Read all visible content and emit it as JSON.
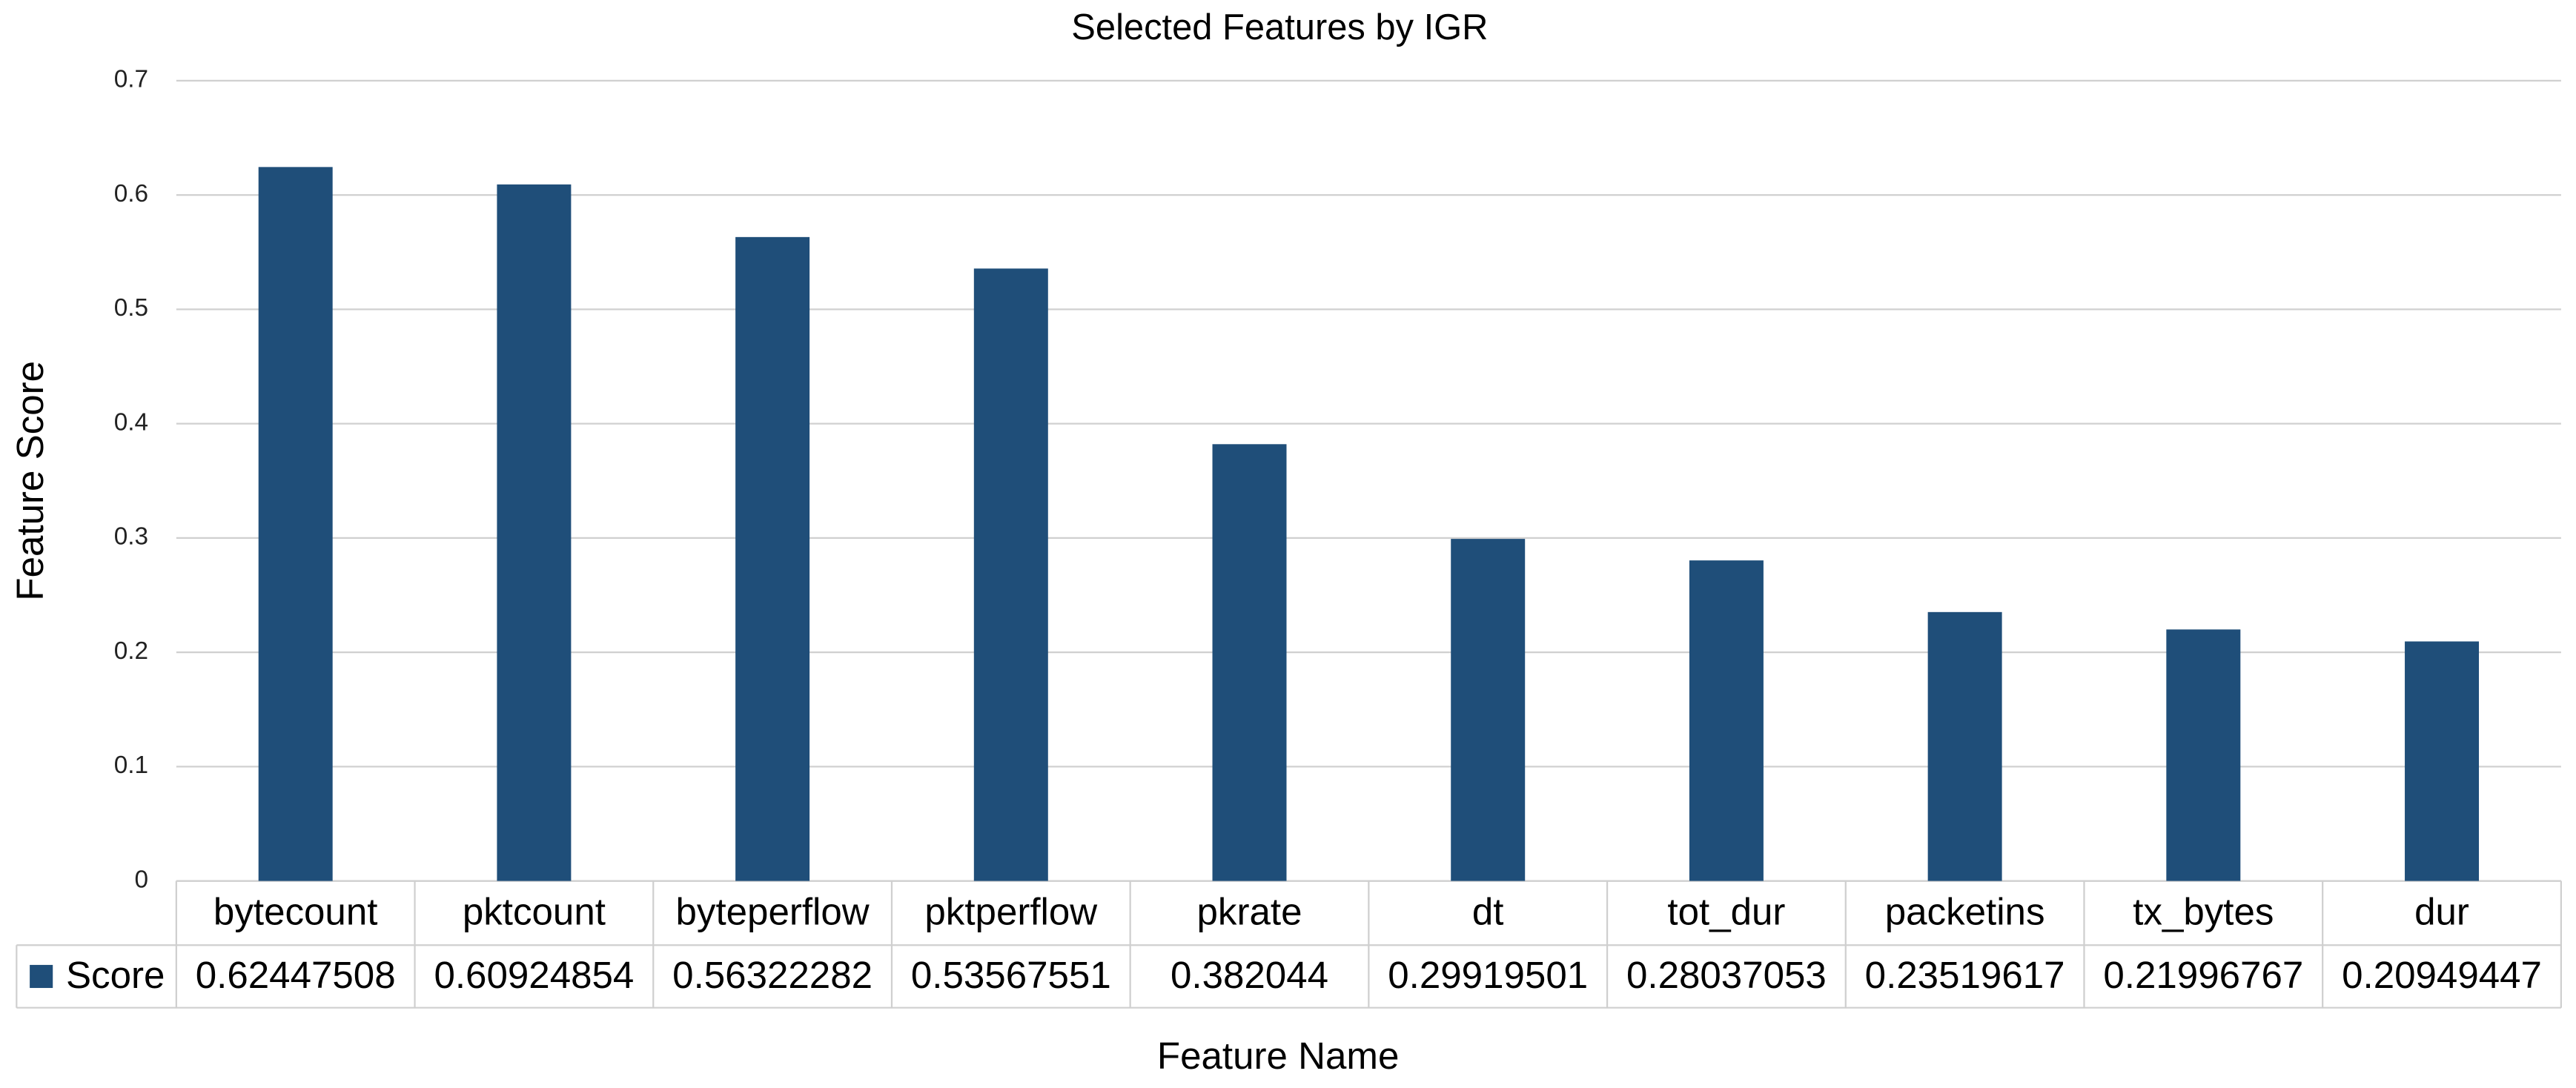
{
  "chart_data": {
    "type": "bar",
    "title": "Selected Features by IGR",
    "x_label": "Feature Name",
    "y_label": "Feature Score",
    "categories": [
      "bytecount",
      "pktcount",
      "byteperflow",
      "pktperflow",
      "pkrate",
      "dt",
      "tot_dur",
      "packetins",
      "tx_bytes",
      "dur"
    ],
    "series": [
      {
        "name": "Score",
        "color": "#1f4e79",
        "values": [
          0.62447508,
          0.60924854,
          0.56322282,
          0.53567551,
          0.382044,
          0.29919501,
          0.28037053,
          0.23519617,
          0.21996767,
          0.20949447
        ]
      }
    ],
    "ylim": [
      0,
      0.7
    ],
    "yticks": [
      0,
      0.1,
      0.2,
      0.3,
      0.4,
      0.5,
      0.6,
      0.7
    ],
    "grid": true
  }
}
